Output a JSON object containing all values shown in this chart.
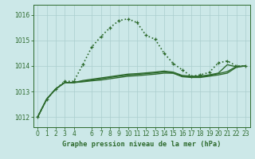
{
  "xlabel": "Graphe pression niveau de la mer (hPa)",
  "bg_color": "#cce8e8",
  "grid_color": "#aacece",
  "line_color": "#2d6a2d",
  "ylim": [
    1011.6,
    1016.4
  ],
  "xlim": [
    -0.5,
    23.5
  ],
  "yticks": [
    1012,
    1013,
    1014,
    1015,
    1016
  ],
  "xticks": [
    0,
    1,
    2,
    3,
    4,
    6,
    7,
    8,
    9,
    10,
    11,
    12,
    13,
    14,
    15,
    16,
    17,
    18,
    19,
    20,
    21,
    22,
    23
  ],
  "series": [
    [
      1012.0,
      1012.7,
      1013.1,
      1013.4,
      1013.4,
      1014.05,
      1014.75,
      1015.15,
      1015.5,
      1015.78,
      1015.85,
      1015.7,
      1015.2,
      1015.05,
      1014.5,
      1014.1,
      1013.85,
      1013.6,
      1013.65,
      1013.75,
      1014.12,
      1014.2,
      1014.0,
      1014.0
    ],
    [
      1012.0,
      1012.7,
      1013.1,
      1013.35,
      1013.35,
      1013.38,
      1013.42,
      1013.45,
      1013.5,
      1013.55,
      1013.6,
      1013.62,
      1013.65,
      1013.68,
      1013.72,
      1013.72,
      1013.58,
      1013.55,
      1013.55,
      1013.6,
      1013.65,
      1013.72,
      1013.95,
      1014.0
    ],
    [
      1012.0,
      1012.7,
      1013.1,
      1013.35,
      1013.35,
      1013.4,
      1013.45,
      1013.5,
      1013.55,
      1013.6,
      1013.65,
      1013.67,
      1013.7,
      1013.73,
      1013.77,
      1013.72,
      1013.6,
      1013.58,
      1013.58,
      1013.63,
      1013.7,
      1013.78,
      1013.98,
      1014.0
    ],
    [
      1012.0,
      1012.7,
      1013.1,
      1013.35,
      1013.35,
      1013.43,
      1013.48,
      1013.53,
      1013.58,
      1013.63,
      1013.68,
      1013.7,
      1013.73,
      1013.76,
      1013.8,
      1013.76,
      1013.63,
      1013.6,
      1013.6,
      1013.65,
      1013.72,
      1014.05,
      1013.97,
      1014.0
    ]
  ]
}
